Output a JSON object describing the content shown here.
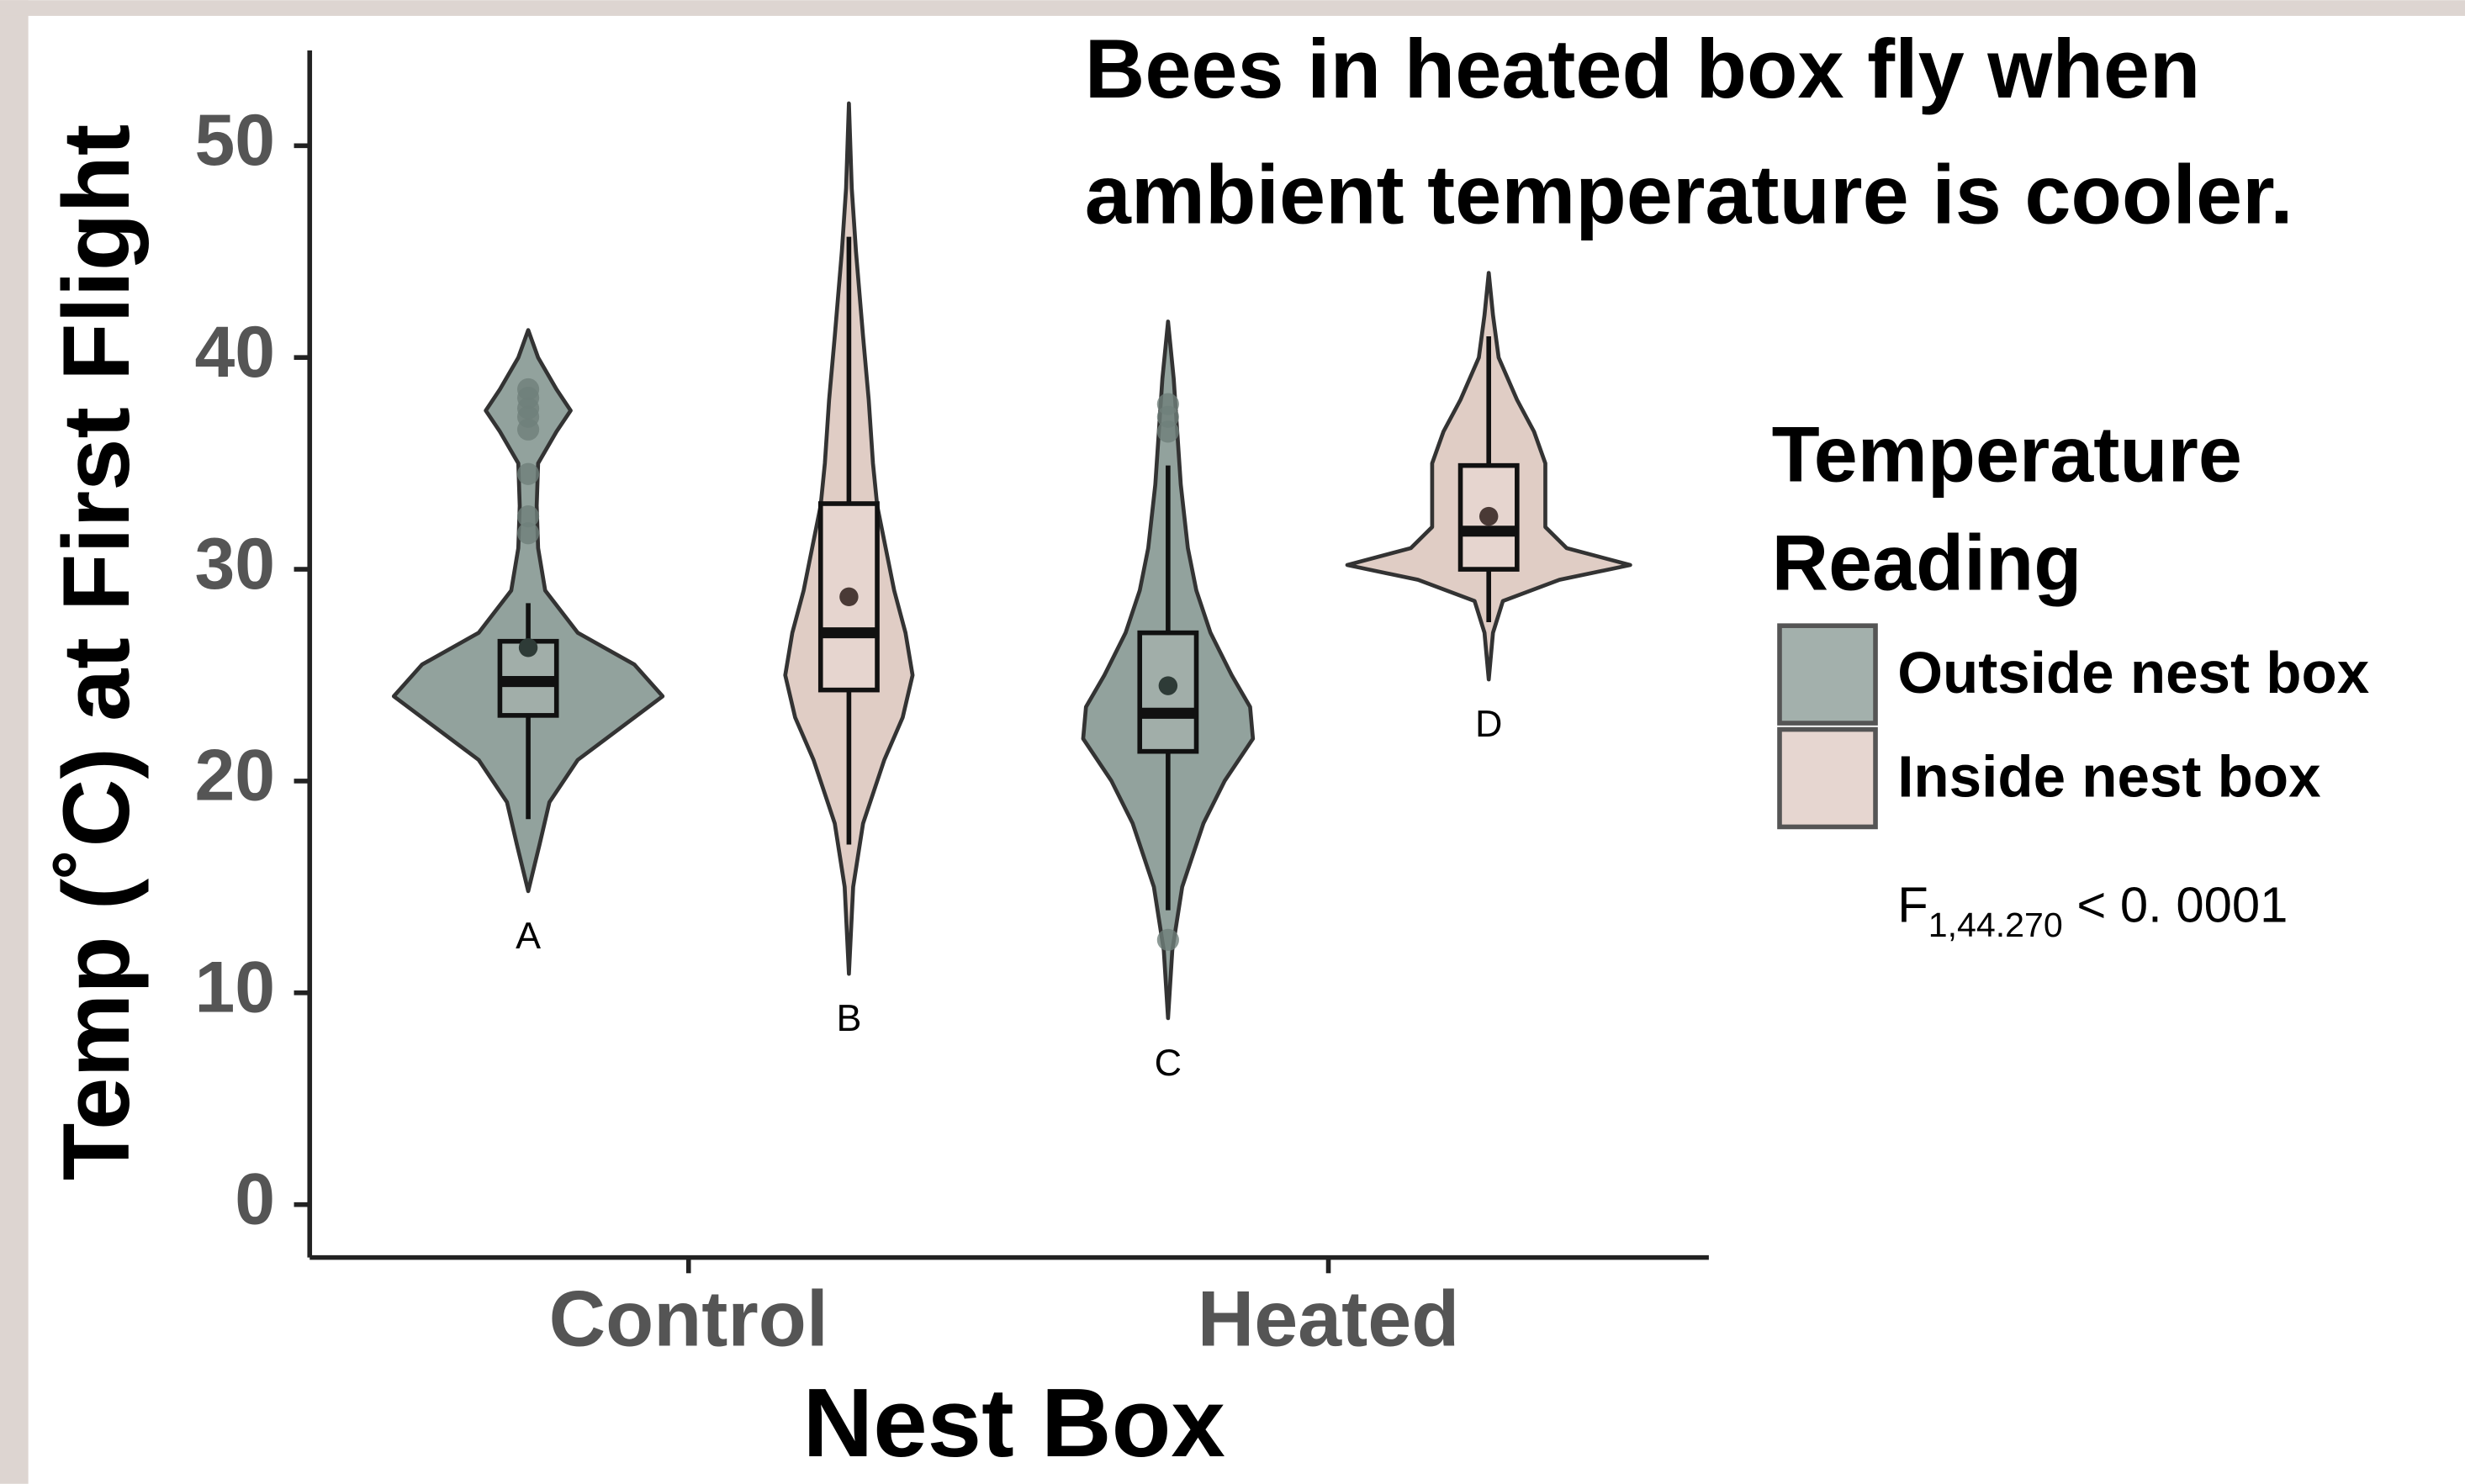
{
  "chart_data": {
    "type": "violin",
    "title": [
      "Bees in heated box fly when",
      "ambient temperature is cooler."
    ],
    "x_label": "Nest Box",
    "y_label": "Temp (˚C) at First Flight",
    "categories": [
      "Control",
      "Heated"
    ],
    "ylim": [
      -2.5,
      54.5
    ],
    "yticks": [
      0,
      10,
      20,
      30,
      40,
      50
    ],
    "legend_title": [
      "Temperature",
      "Reading"
    ],
    "legend": "right",
    "statistic": {
      "symbol": "F",
      "subscript": "1,44.270",
      "text": " < 0. 0001"
    },
    "series": [
      {
        "name": "Outside nest box",
        "color": "#7f928c",
        "box_color": "#a3b0ac",
        "groups": [
          {
            "label": "A",
            "whisker_low": 18.2,
            "q1": 23.1,
            "median": 24.7,
            "q3": 26.6,
            "whisker_high": 28.4,
            "mean": 26.3,
            "outliers": [
              38.5,
              38.1,
              37.6,
              37.2,
              36.6,
              34.5,
              32.5,
              31.7
            ],
            "density": {
              "y": [
                14.8,
                17,
                19,
                21,
                22.5,
                24,
                25.5,
                27,
                29,
                31,
                33,
                35,
                36.5,
                37.5,
                38.5,
                40,
                41.3
              ],
              "width": [
                0,
                0.08,
                0.15,
                0.35,
                0.65,
                0.95,
                0.75,
                0.35,
                0.12,
                0.07,
                0.06,
                0.07,
                0.2,
                0.3,
                0.2,
                0.07,
                0
              ]
            }
          },
          {
            "label": "C",
            "whisker_low": 13.9,
            "q1": 21.4,
            "median": 23.2,
            "q3": 27.0,
            "whisker_high": 34.9,
            "mean": 24.5,
            "outliers": [
              37.8,
              37.2,
              36.5,
              12.5
            ],
            "density": {
              "y": [
                8.8,
                12,
                15,
                18,
                20,
                22,
                23.5,
                25,
                27,
                29,
                31,
                34,
                37,
                39,
                41.7
              ],
              "width": [
                0,
                0.03,
                0.1,
                0.25,
                0.4,
                0.6,
                0.58,
                0.45,
                0.3,
                0.2,
                0.14,
                0.09,
                0.06,
                0.04,
                0
              ]
            }
          }
        ]
      },
      {
        "name": "Inside nest box",
        "color": "#dbc4bb",
        "box_color": "#e6d6d0",
        "groups": [
          {
            "label": "B",
            "whisker_low": 17.0,
            "q1": 24.3,
            "median": 27.0,
            "q3": 33.1,
            "whisker_high": 45.7,
            "mean": 28.7,
            "outliers": [],
            "density": {
              "y": [
                10.9,
                15,
                18,
                21,
                23,
                25,
                27,
                29,
                31,
                33,
                35,
                38,
                41,
                45,
                48,
                52
              ],
              "width": [
                0,
                0.03,
                0.1,
                0.25,
                0.38,
                0.45,
                0.4,
                0.32,
                0.26,
                0.2,
                0.17,
                0.14,
                0.1,
                0.05,
                0.02,
                0
              ]
            }
          },
          {
            "label": "D",
            "whisker_low": 27.5,
            "q1": 30.0,
            "median": 31.8,
            "q3": 34.9,
            "whisker_high": 41.0,
            "mean": 32.5,
            "outliers": [],
            "density": {
              "y": [
                24.8,
                27,
                28.5,
                29.5,
                30.2,
                31,
                32,
                33.5,
                35,
                36.5,
                38,
                40,
                42,
                44
              ],
              "width": [
                0,
                0.03,
                0.1,
                0.5,
                1.0,
                0.55,
                0.4,
                0.4,
                0.4,
                0.32,
                0.2,
                0.07,
                0.03,
                0
              ]
            }
          }
        ]
      }
    ]
  }
}
